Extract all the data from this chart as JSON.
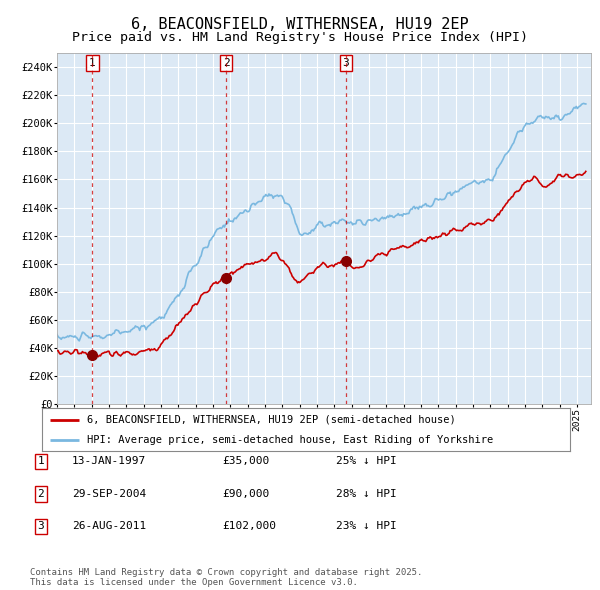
{
  "title": "6, BEACONSFIELD, WITHERNSEA, HU19 2EP",
  "subtitle": "Price paid vs. HM Land Registry's House Price Index (HPI)",
  "title_fontsize": 11,
  "subtitle_fontsize": 9.5,
  "plot_bg_color": "#dce9f5",
  "outer_bg_color": "#ffffff",
  "ylim": [
    0,
    250000
  ],
  "yticks": [
    0,
    20000,
    40000,
    60000,
    80000,
    100000,
    120000,
    140000,
    160000,
    180000,
    200000,
    220000,
    240000
  ],
  "ytick_labels": [
    "£0",
    "£20K",
    "£40K",
    "£60K",
    "£80K",
    "£100K",
    "£120K",
    "£140K",
    "£160K",
    "£180K",
    "£200K",
    "£220K",
    "£240K"
  ],
  "hpi_color": "#7ab8e0",
  "price_color": "#cc0000",
  "sale_marker_color": "#880000",
  "sale_marker_size": 7,
  "legend_label_price": "6, BEACONSFIELD, WITHERNSEA, HU19 2EP (semi-detached house)",
  "legend_label_hpi": "HPI: Average price, semi-detached house, East Riding of Yorkshire",
  "transactions": [
    {
      "date_num": 1997.04,
      "price": 35000,
      "label": "1"
    },
    {
      "date_num": 2004.75,
      "price": 90000,
      "label": "2"
    },
    {
      "date_num": 2011.65,
      "price": 102000,
      "label": "3"
    }
  ],
  "transaction_info": [
    {
      "label": "1",
      "date": "13-JAN-1997",
      "price": "£35,000",
      "hpi_pct": "25% ↓ HPI"
    },
    {
      "label": "2",
      "date": "29-SEP-2004",
      "price": "£90,000",
      "hpi_pct": "28% ↓ HPI"
    },
    {
      "label": "3",
      "date": "26-AUG-2011",
      "price": "£102,000",
      "hpi_pct": "23% ↓ HPI"
    }
  ],
  "footer_text": "Contains HM Land Registry data © Crown copyright and database right 2025.\nThis data is licensed under the Open Government Licence v3.0.",
  "xmin": 1995.0,
  "xmax": 2025.8
}
